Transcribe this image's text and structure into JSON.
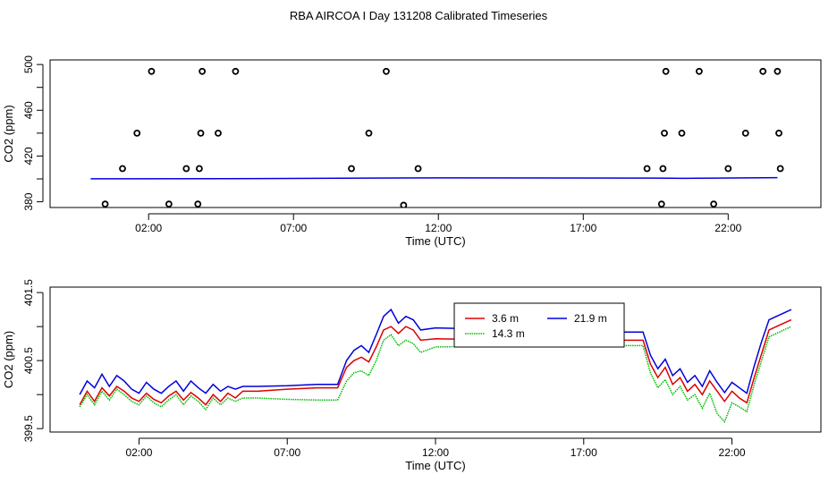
{
  "title": "RBA AIRCOA I  Day 131208  Calibrated Timeseries",
  "chart_data": [
    {
      "type": "scatter",
      "xlabel": "Time (UTC)",
      "ylabel": "CO2 (ppm)",
      "xlim": [
        -1.4,
        25.2
      ],
      "ylim": [
        375,
        504
      ],
      "xticks": [
        2,
        7,
        12,
        17,
        22
      ],
      "xtick_labels": [
        "02:00",
        "07:00",
        "12:00",
        "17:00",
        "22:00"
      ],
      "yticks": [
        380,
        420,
        460,
        500
      ],
      "ytick_labels": [
        "380",
        "420",
        "460",
        "500"
      ],
      "yminor_ticks": [
        400,
        440,
        480
      ],
      "points": [
        {
          "x": 0.5,
          "y": 378
        },
        {
          "x": 1.1,
          "y": 409
        },
        {
          "x": 1.6,
          "y": 440
        },
        {
          "x": 2.1,
          "y": 494
        },
        {
          "x": 2.7,
          "y": 378
        },
        {
          "x": 3.3,
          "y": 409
        },
        {
          "x": 3.7,
          "y": 378
        },
        {
          "x": 3.75,
          "y": 409
        },
        {
          "x": 3.8,
          "y": 440
        },
        {
          "x": 3.85,
          "y": 494
        },
        {
          "x": 4.4,
          "y": 440
        },
        {
          "x": 5.0,
          "y": 494
        },
        {
          "x": 9.0,
          "y": 409
        },
        {
          "x": 9.6,
          "y": 440
        },
        {
          "x": 10.2,
          "y": 494
        },
        {
          "x": 10.8,
          "y": 377
        },
        {
          "x": 11.3,
          "y": 409
        },
        {
          "x": 19.2,
          "y": 409
        },
        {
          "x": 19.7,
          "y": 378
        },
        {
          "x": 19.75,
          "y": 409
        },
        {
          "x": 19.8,
          "y": 440
        },
        {
          "x": 19.85,
          "y": 494
        },
        {
          "x": 20.4,
          "y": 440
        },
        {
          "x": 21.0,
          "y": 494
        },
        {
          "x": 21.5,
          "y": 378
        },
        {
          "x": 22.0,
          "y": 409
        },
        {
          "x": 22.6,
          "y": 440
        },
        {
          "x": 23.2,
          "y": 494
        },
        {
          "x": 23.7,
          "y": 494
        },
        {
          "x": 23.75,
          "y": 440
        },
        {
          "x": 23.8,
          "y": 409
        }
      ],
      "line": {
        "color": "#0000dd",
        "x": [
          0,
          6,
          10.5,
          12,
          19.5,
          20.5,
          23.7
        ],
        "y": [
          400.1,
          400.3,
          400.8,
          400.9,
          400.7,
          400.5,
          401.1
        ]
      }
    },
    {
      "type": "line",
      "xlabel": "Time (UTC)",
      "ylabel": "CO2 (ppm)",
      "xlim": [
        -1.0,
        25.0
      ],
      "ylim": [
        399.45,
        401.58
      ],
      "xticks": [
        2,
        7,
        12,
        17,
        22
      ],
      "xtick_labels": [
        "02:00",
        "07:00",
        "12:00",
        "17:00",
        "22:00"
      ],
      "yticks": [
        399.5,
        400.5,
        401.5
      ],
      "ytick_labels": [
        "399.5",
        "400.5",
        "401.5"
      ],
      "yminor_ticks": [
        400.0,
        401.0
      ],
      "legend": {
        "placement": "top-center",
        "entries": [
          {
            "name": "3.6 m",
            "color": "#dd0000"
          },
          {
            "name": "21.9 m",
            "color": "#0000dd"
          },
          {
            "name": "14.3 m",
            "color": "#00bb00",
            "dash": true
          }
        ]
      },
      "series": [
        {
          "name": "3.6 m",
          "color": "#dd0000",
          "x": [
            0.0,
            0.25,
            0.5,
            0.75,
            1.0,
            1.25,
            1.5,
            1.75,
            2.0,
            2.25,
            2.5,
            2.75,
            3.0,
            3.25,
            3.5,
            3.75,
            4.0,
            4.25,
            4.5,
            4.75,
            5.0,
            5.25,
            5.5,
            6.0,
            7.0,
            8.0,
            8.7,
            9.0,
            9.25,
            9.5,
            9.75,
            10.0,
            10.25,
            10.5,
            10.75,
            11.0,
            11.25,
            11.5,
            12.0,
            15.0,
            18.0,
            19.0,
            19.25,
            19.5,
            19.75,
            20.0,
            20.25,
            20.5,
            20.75,
            21.0,
            21.25,
            21.5,
            21.75,
            22.0,
            22.25,
            22.5,
            22.75,
            23.0,
            23.25,
            23.5,
            23.75,
            24.0
          ],
          "y": [
            399.85,
            400.05,
            399.9,
            400.1,
            399.98,
            400.12,
            400.05,
            399.95,
            399.9,
            400.02,
            399.93,
            399.88,
            399.98,
            400.05,
            399.92,
            400.03,
            399.95,
            399.85,
            400.0,
            399.9,
            400.02,
            399.95,
            400.05,
            400.05,
            400.08,
            400.1,
            400.1,
            400.4,
            400.5,
            400.55,
            400.48,
            400.7,
            400.95,
            401.0,
            400.9,
            401.0,
            400.95,
            400.8,
            400.82,
            400.8,
            400.8,
            400.8,
            400.45,
            400.25,
            400.4,
            400.15,
            400.25,
            400.05,
            400.15,
            400.0,
            400.2,
            400.05,
            399.9,
            400.05,
            399.95,
            399.88,
            400.25,
            400.6,
            400.95,
            401.0,
            401.05,
            401.1
          ]
        },
        {
          "name": "21.9 m",
          "color": "#0000dd",
          "x": [
            0.0,
            0.25,
            0.5,
            0.75,
            1.0,
            1.25,
            1.5,
            1.75,
            2.0,
            2.25,
            2.5,
            2.75,
            3.0,
            3.25,
            3.5,
            3.75,
            4.0,
            4.25,
            4.5,
            4.75,
            5.0,
            5.25,
            5.5,
            6.0,
            7.0,
            8.0,
            8.7,
            9.0,
            9.25,
            9.5,
            9.75,
            10.0,
            10.25,
            10.5,
            10.75,
            11.0,
            11.25,
            11.5,
            12.0,
            15.0,
            18.0,
            19.0,
            19.25,
            19.5,
            19.75,
            20.0,
            20.25,
            20.5,
            20.75,
            21.0,
            21.25,
            21.5,
            21.75,
            22.0,
            22.25,
            22.5,
            22.75,
            23.0,
            23.25,
            23.5,
            23.75,
            24.0
          ],
          "y": [
            400.0,
            400.2,
            400.1,
            400.3,
            400.12,
            400.28,
            400.2,
            400.08,
            400.02,
            400.18,
            400.08,
            400.02,
            400.12,
            400.2,
            400.05,
            400.2,
            400.1,
            400.02,
            400.15,
            400.05,
            400.12,
            400.08,
            400.12,
            400.12,
            400.13,
            400.15,
            400.15,
            400.5,
            400.65,
            400.72,
            400.62,
            400.88,
            401.15,
            401.25,
            401.05,
            401.15,
            401.1,
            400.95,
            400.98,
            400.95,
            400.92,
            400.92,
            400.58,
            400.38,
            400.52,
            400.28,
            400.38,
            400.18,
            400.28,
            400.12,
            400.35,
            400.18,
            400.03,
            400.18,
            400.1,
            400.02,
            400.42,
            400.78,
            401.1,
            401.15,
            401.2,
            401.25
          ]
        },
        {
          "name": "14.3 m",
          "color": "#00bb00",
          "x": [
            0.0,
            0.25,
            0.5,
            0.75,
            1.0,
            1.25,
            1.5,
            1.75,
            2.0,
            2.25,
            2.5,
            2.75,
            3.0,
            3.25,
            3.5,
            3.75,
            4.0,
            4.25,
            4.5,
            4.75,
            5.0,
            5.25,
            5.5,
            6.0,
            7.0,
            8.0,
            8.7,
            9.0,
            9.25,
            9.5,
            9.75,
            10.0,
            10.25,
            10.5,
            10.75,
            11.0,
            11.25,
            11.5,
            12.0,
            15.0,
            18.0,
            19.0,
            19.25,
            19.5,
            19.75,
            20.0,
            20.25,
            20.5,
            20.75,
            21.0,
            21.25,
            21.5,
            21.75,
            22.0,
            22.25,
            22.5,
            22.75,
            23.0,
            23.25,
            23.5,
            23.75,
            24.0
          ],
          "y": [
            399.82,
            400.0,
            399.85,
            400.05,
            399.92,
            400.08,
            400.0,
            399.9,
            399.85,
            399.98,
            399.88,
            399.82,
            399.92,
            400.0,
            399.85,
            399.98,
            399.9,
            399.78,
            399.95,
            399.85,
            399.95,
            399.9,
            399.95,
            399.95,
            399.93,
            399.92,
            399.92,
            400.2,
            400.32,
            400.35,
            400.28,
            400.5,
            400.8,
            400.88,
            400.72,
            400.8,
            400.75,
            400.62,
            400.7,
            400.72,
            400.72,
            400.72,
            400.32,
            400.1,
            400.22,
            400.0,
            400.12,
            399.92,
            400.0,
            399.8,
            400.02,
            399.72,
            399.6,
            399.88,
            399.82,
            399.75,
            400.15,
            400.5,
            400.85,
            400.9,
            400.95,
            401.0
          ]
        }
      ]
    }
  ]
}
